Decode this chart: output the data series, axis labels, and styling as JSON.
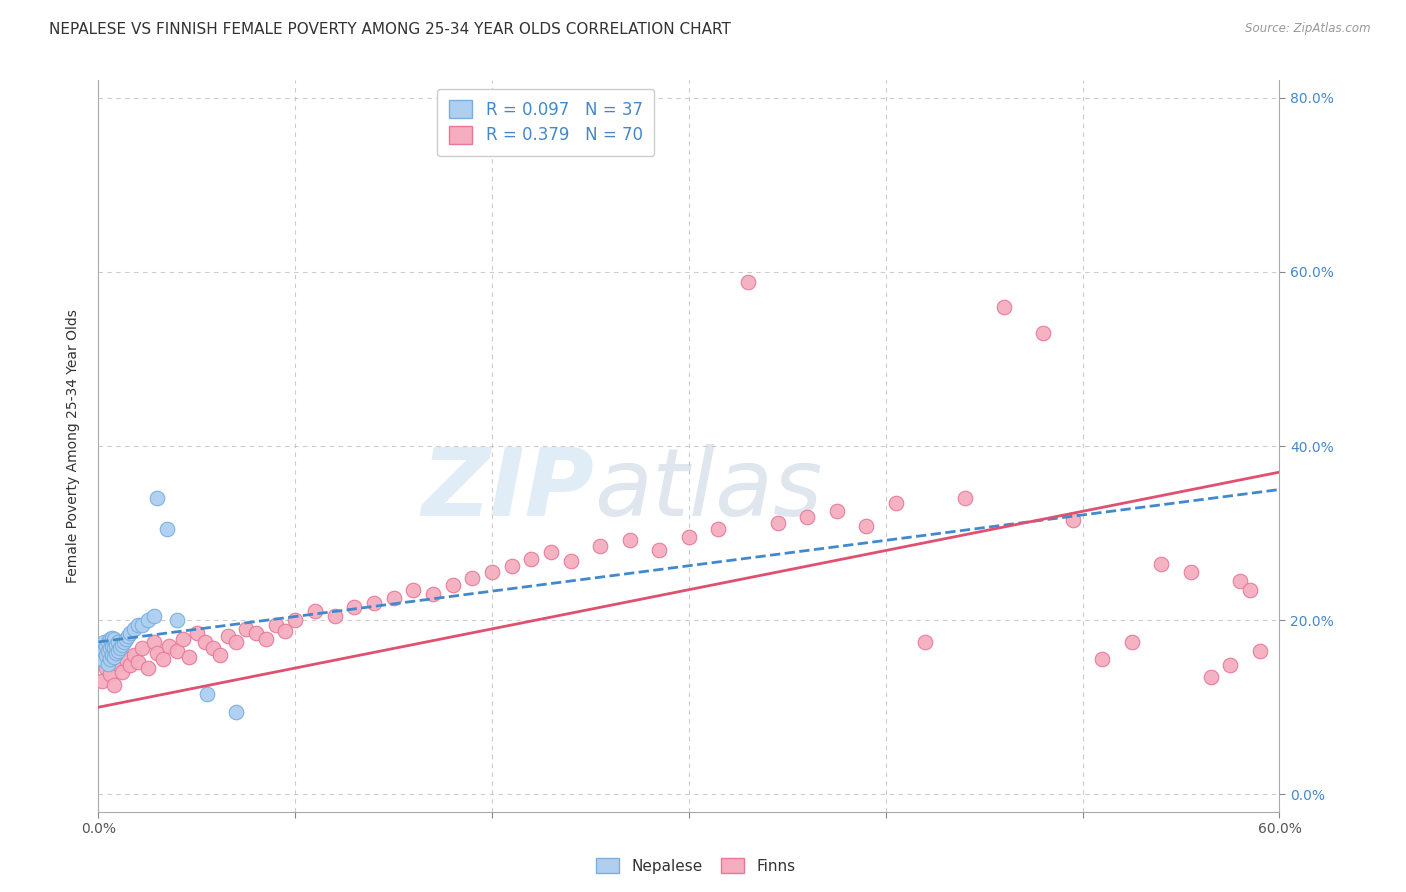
{
  "title": "NEPALESE VS FINNISH FEMALE POVERTY AMONG 25-34 YEAR OLDS CORRELATION CHART",
  "source": "Source: ZipAtlas.com",
  "ylabel": "Female Poverty Among 25-34 Year Olds",
  "xlim": [
    0.0,
    0.6
  ],
  "ylim": [
    -0.02,
    0.82
  ],
  "xticks": [
    0.0,
    0.1,
    0.2,
    0.3,
    0.4,
    0.5,
    0.6
  ],
  "xticklabels_shown": [
    "0.0%",
    "",
    "",
    "",
    "",
    "",
    "60.0%"
  ],
  "yticks_right": [
    0.0,
    0.2,
    0.4,
    0.6,
    0.8
  ],
  "yticklabels_right": [
    "0.0%",
    "20.0%",
    "40.0%",
    "60.0%",
    "80.0%"
  ],
  "legend_labels": [
    "Nepalese",
    "Finns"
  ],
  "nepalese_color": "#aecff0",
  "nepalese_edge": "#7aaedd",
  "finns_color": "#f5aec0",
  "finns_edge": "#e87898",
  "nepalese_line_color": "#4488cc",
  "finns_line_color": "#e05070",
  "nepalese_R": 0.097,
  "nepalese_N": 37,
  "finns_R": 0.379,
  "finns_N": 70,
  "watermark_zip": "ZIP",
  "watermark_atlas": "atlas",
  "background_color": "#ffffff",
  "grid_color": "#cccccc",
  "title_fontsize": 11,
  "axis_label_fontsize": 10,
  "tick_fontsize": 10,
  "legend_fontsize": 12,
  "nepalese_x": [
    0.002,
    0.003,
    0.003,
    0.004,
    0.004,
    0.005,
    0.005,
    0.005,
    0.006,
    0.006,
    0.006,
    0.007,
    0.007,
    0.007,
    0.008,
    0.008,
    0.008,
    0.009,
    0.009,
    0.01,
    0.01,
    0.011,
    0.012,
    0.013,
    0.014,
    0.015,
    0.016,
    0.018,
    0.02,
    0.022,
    0.025,
    0.028,
    0.03,
    0.035,
    0.04,
    0.055,
    0.07
  ],
  "nepalese_y": [
    0.155,
    0.165,
    0.175,
    0.16,
    0.17,
    0.15,
    0.165,
    0.175,
    0.155,
    0.168,
    0.178,
    0.16,
    0.17,
    0.18,
    0.158,
    0.168,
    0.178,
    0.162,
    0.172,
    0.165,
    0.175,
    0.168,
    0.172,
    0.175,
    0.178,
    0.182,
    0.185,
    0.19,
    0.195,
    0.195,
    0.2,
    0.205,
    0.34,
    0.305,
    0.2,
    0.115,
    0.095
  ],
  "finns_x": [
    0.002,
    0.004,
    0.006,
    0.008,
    0.01,
    0.012,
    0.014,
    0.016,
    0.018,
    0.02,
    0.022,
    0.025,
    0.028,
    0.03,
    0.033,
    0.036,
    0.04,
    0.043,
    0.046,
    0.05,
    0.054,
    0.058,
    0.062,
    0.066,
    0.07,
    0.075,
    0.08,
    0.085,
    0.09,
    0.095,
    0.1,
    0.11,
    0.12,
    0.13,
    0.14,
    0.15,
    0.16,
    0.17,
    0.18,
    0.19,
    0.2,
    0.21,
    0.22,
    0.23,
    0.24,
    0.255,
    0.27,
    0.285,
    0.3,
    0.315,
    0.33,
    0.345,
    0.36,
    0.375,
    0.39,
    0.405,
    0.42,
    0.44,
    0.46,
    0.48,
    0.495,
    0.51,
    0.525,
    0.54,
    0.555,
    0.565,
    0.575,
    0.58,
    0.585,
    0.59
  ],
  "finns_y": [
    0.13,
    0.145,
    0.138,
    0.125,
    0.15,
    0.14,
    0.155,
    0.148,
    0.16,
    0.152,
    0.168,
    0.145,
    0.175,
    0.162,
    0.155,
    0.17,
    0.165,
    0.178,
    0.158,
    0.185,
    0.175,
    0.168,
    0.16,
    0.182,
    0.175,
    0.19,
    0.185,
    0.178,
    0.195,
    0.188,
    0.2,
    0.21,
    0.205,
    0.215,
    0.22,
    0.225,
    0.235,
    0.23,
    0.24,
    0.248,
    0.255,
    0.262,
    0.27,
    0.278,
    0.268,
    0.285,
    0.292,
    0.28,
    0.295,
    0.305,
    0.588,
    0.312,
    0.318,
    0.325,
    0.308,
    0.335,
    0.175,
    0.34,
    0.56,
    0.53,
    0.315,
    0.155,
    0.175,
    0.265,
    0.255,
    0.135,
    0.148,
    0.245,
    0.235,
    0.165
  ]
}
